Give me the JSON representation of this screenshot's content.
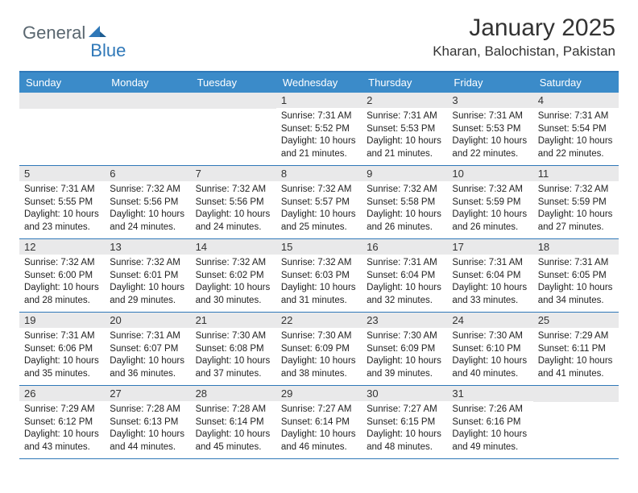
{
  "logo": {
    "part1": "General",
    "part2": "Blue"
  },
  "title": "January 2025",
  "location": "Kharan, Balochistan, Pakistan",
  "colors": {
    "header_bg": "#3b8bc9",
    "border": "#2f78b8",
    "daynum_bg": "#e9e9ea",
    "text": "#333333",
    "logo_gray": "#5a6770",
    "logo_blue": "#2f78b8"
  },
  "day_names": [
    "Sunday",
    "Monday",
    "Tuesday",
    "Wednesday",
    "Thursday",
    "Friday",
    "Saturday"
  ],
  "weeks": [
    [
      {
        "empty": true
      },
      {
        "empty": true
      },
      {
        "empty": true
      },
      {
        "day": "1",
        "sunrise": "Sunrise: 7:31 AM",
        "sunset": "Sunset: 5:52 PM",
        "daylight": "Daylight: 10 hours and 21 minutes."
      },
      {
        "day": "2",
        "sunrise": "Sunrise: 7:31 AM",
        "sunset": "Sunset: 5:53 PM",
        "daylight": "Daylight: 10 hours and 21 minutes."
      },
      {
        "day": "3",
        "sunrise": "Sunrise: 7:31 AM",
        "sunset": "Sunset: 5:53 PM",
        "daylight": "Daylight: 10 hours and 22 minutes."
      },
      {
        "day": "4",
        "sunrise": "Sunrise: 7:31 AM",
        "sunset": "Sunset: 5:54 PM",
        "daylight": "Daylight: 10 hours and 22 minutes."
      }
    ],
    [
      {
        "day": "5",
        "sunrise": "Sunrise: 7:31 AM",
        "sunset": "Sunset: 5:55 PM",
        "daylight": "Daylight: 10 hours and 23 minutes."
      },
      {
        "day": "6",
        "sunrise": "Sunrise: 7:32 AM",
        "sunset": "Sunset: 5:56 PM",
        "daylight": "Daylight: 10 hours and 24 minutes."
      },
      {
        "day": "7",
        "sunrise": "Sunrise: 7:32 AM",
        "sunset": "Sunset: 5:56 PM",
        "daylight": "Daylight: 10 hours and 24 minutes."
      },
      {
        "day": "8",
        "sunrise": "Sunrise: 7:32 AM",
        "sunset": "Sunset: 5:57 PM",
        "daylight": "Daylight: 10 hours and 25 minutes."
      },
      {
        "day": "9",
        "sunrise": "Sunrise: 7:32 AM",
        "sunset": "Sunset: 5:58 PM",
        "daylight": "Daylight: 10 hours and 26 minutes."
      },
      {
        "day": "10",
        "sunrise": "Sunrise: 7:32 AM",
        "sunset": "Sunset: 5:59 PM",
        "daylight": "Daylight: 10 hours and 26 minutes."
      },
      {
        "day": "11",
        "sunrise": "Sunrise: 7:32 AM",
        "sunset": "Sunset: 5:59 PM",
        "daylight": "Daylight: 10 hours and 27 minutes."
      }
    ],
    [
      {
        "day": "12",
        "sunrise": "Sunrise: 7:32 AM",
        "sunset": "Sunset: 6:00 PM",
        "daylight": "Daylight: 10 hours and 28 minutes."
      },
      {
        "day": "13",
        "sunrise": "Sunrise: 7:32 AM",
        "sunset": "Sunset: 6:01 PM",
        "daylight": "Daylight: 10 hours and 29 minutes."
      },
      {
        "day": "14",
        "sunrise": "Sunrise: 7:32 AM",
        "sunset": "Sunset: 6:02 PM",
        "daylight": "Daylight: 10 hours and 30 minutes."
      },
      {
        "day": "15",
        "sunrise": "Sunrise: 7:32 AM",
        "sunset": "Sunset: 6:03 PM",
        "daylight": "Daylight: 10 hours and 31 minutes."
      },
      {
        "day": "16",
        "sunrise": "Sunrise: 7:31 AM",
        "sunset": "Sunset: 6:04 PM",
        "daylight": "Daylight: 10 hours and 32 minutes."
      },
      {
        "day": "17",
        "sunrise": "Sunrise: 7:31 AM",
        "sunset": "Sunset: 6:04 PM",
        "daylight": "Daylight: 10 hours and 33 minutes."
      },
      {
        "day": "18",
        "sunrise": "Sunrise: 7:31 AM",
        "sunset": "Sunset: 6:05 PM",
        "daylight": "Daylight: 10 hours and 34 minutes."
      }
    ],
    [
      {
        "day": "19",
        "sunrise": "Sunrise: 7:31 AM",
        "sunset": "Sunset: 6:06 PM",
        "daylight": "Daylight: 10 hours and 35 minutes."
      },
      {
        "day": "20",
        "sunrise": "Sunrise: 7:31 AM",
        "sunset": "Sunset: 6:07 PM",
        "daylight": "Daylight: 10 hours and 36 minutes."
      },
      {
        "day": "21",
        "sunrise": "Sunrise: 7:30 AM",
        "sunset": "Sunset: 6:08 PM",
        "daylight": "Daylight: 10 hours and 37 minutes."
      },
      {
        "day": "22",
        "sunrise": "Sunrise: 7:30 AM",
        "sunset": "Sunset: 6:09 PM",
        "daylight": "Daylight: 10 hours and 38 minutes."
      },
      {
        "day": "23",
        "sunrise": "Sunrise: 7:30 AM",
        "sunset": "Sunset: 6:09 PM",
        "daylight": "Daylight: 10 hours and 39 minutes."
      },
      {
        "day": "24",
        "sunrise": "Sunrise: 7:30 AM",
        "sunset": "Sunset: 6:10 PM",
        "daylight": "Daylight: 10 hours and 40 minutes."
      },
      {
        "day": "25",
        "sunrise": "Sunrise: 7:29 AM",
        "sunset": "Sunset: 6:11 PM",
        "daylight": "Daylight: 10 hours and 41 minutes."
      }
    ],
    [
      {
        "day": "26",
        "sunrise": "Sunrise: 7:29 AM",
        "sunset": "Sunset: 6:12 PM",
        "daylight": "Daylight: 10 hours and 43 minutes."
      },
      {
        "day": "27",
        "sunrise": "Sunrise: 7:28 AM",
        "sunset": "Sunset: 6:13 PM",
        "daylight": "Daylight: 10 hours and 44 minutes."
      },
      {
        "day": "28",
        "sunrise": "Sunrise: 7:28 AM",
        "sunset": "Sunset: 6:14 PM",
        "daylight": "Daylight: 10 hours and 45 minutes."
      },
      {
        "day": "29",
        "sunrise": "Sunrise: 7:27 AM",
        "sunset": "Sunset: 6:14 PM",
        "daylight": "Daylight: 10 hours and 46 minutes."
      },
      {
        "day": "30",
        "sunrise": "Sunrise: 7:27 AM",
        "sunset": "Sunset: 6:15 PM",
        "daylight": "Daylight: 10 hours and 48 minutes."
      },
      {
        "day": "31",
        "sunrise": "Sunrise: 7:26 AM",
        "sunset": "Sunset: 6:16 PM",
        "daylight": "Daylight: 10 hours and 49 minutes."
      },
      {
        "empty": true
      }
    ]
  ]
}
